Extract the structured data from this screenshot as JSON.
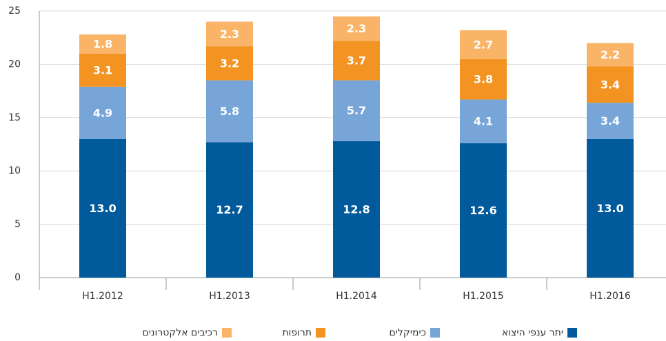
{
  "chart_data": {
    "type": "stacked_bar",
    "categories": [
      "H1.2012",
      "H1.2013",
      "H1.2014",
      "H1.2015",
      "H1.2016"
    ],
    "series": [
      {
        "name": "יתר ענפי היצוא",
        "color": "#005a9c",
        "values": [
          13,
          12.7,
          12.8,
          12.6,
          13
        ],
        "value_labels": [
          "13.0",
          "12.7",
          "12.8",
          "12.6",
          "13.0"
        ]
      },
      {
        "name": "כימיקלים",
        "color": "#77a5d8",
        "values": [
          4.9,
          5.8,
          5.7,
          4.1,
          3.4
        ],
        "value_labels": [
          "4.9",
          "5.8",
          "5.7",
          "4.1",
          "3.4"
        ]
      },
      {
        "name": "תרופות",
        "color": "#f39322",
        "values": [
          3.1,
          3.2,
          3.7,
          3.8,
          3.4
        ],
        "value_labels": [
          "3.1",
          "3.2",
          "3.7",
          "3.8",
          "3.4"
        ]
      },
      {
        "name": "רכיבים אלקטרונים",
        "color": "#f9b468",
        "values": [
          1.8,
          2.3,
          2.3,
          2.7,
          2.2
        ],
        "value_labels": [
          "1.8",
          "2.3",
          "2.3",
          "2.7",
          "2.2"
        ]
      }
    ],
    "ylim": [
      0,
      25
    ],
    "yticks": [
      0,
      5,
      10,
      15,
      20,
      25
    ],
    "grid": true,
    "legend": "bottom"
  }
}
